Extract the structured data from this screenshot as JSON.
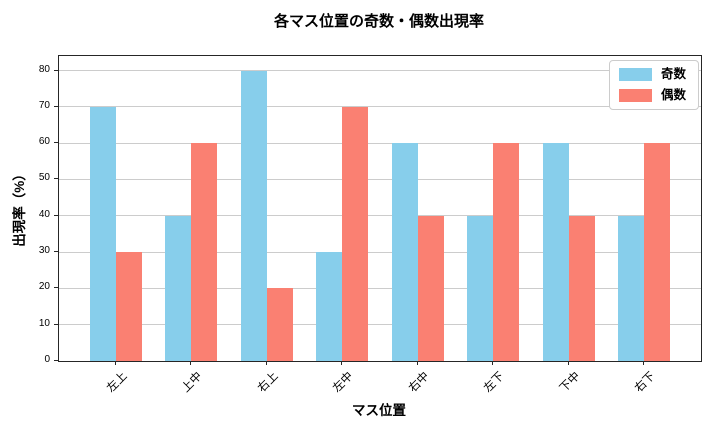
{
  "chart_data": {
    "type": "bar",
    "title": "各マス位置の奇数・偶数出現率",
    "xlabel": "マス位置",
    "ylabel": "出現率（%）",
    "categories": [
      "左上",
      "上中",
      "右上",
      "左中",
      "右中",
      "左下",
      "下中",
      "右下"
    ],
    "series": [
      {
        "name": "奇数",
        "color": "#87CEEB",
        "values": [
          70,
          40,
          80,
          30,
          60,
          40,
          60,
          40
        ]
      },
      {
        "name": "偶数",
        "color": "#FA8072",
        "values": [
          30,
          60,
          20,
          70,
          40,
          60,
          40,
          60
        ]
      }
    ],
    "yticks": [
      0,
      10,
      20,
      30,
      40,
      50,
      60,
      70,
      80
    ],
    "ylim": [
      0,
      84
    ],
    "grid": "horizontal",
    "grid_color": "#cccccc",
    "legend_position": "upper right",
    "spine_color": "#262626"
  }
}
